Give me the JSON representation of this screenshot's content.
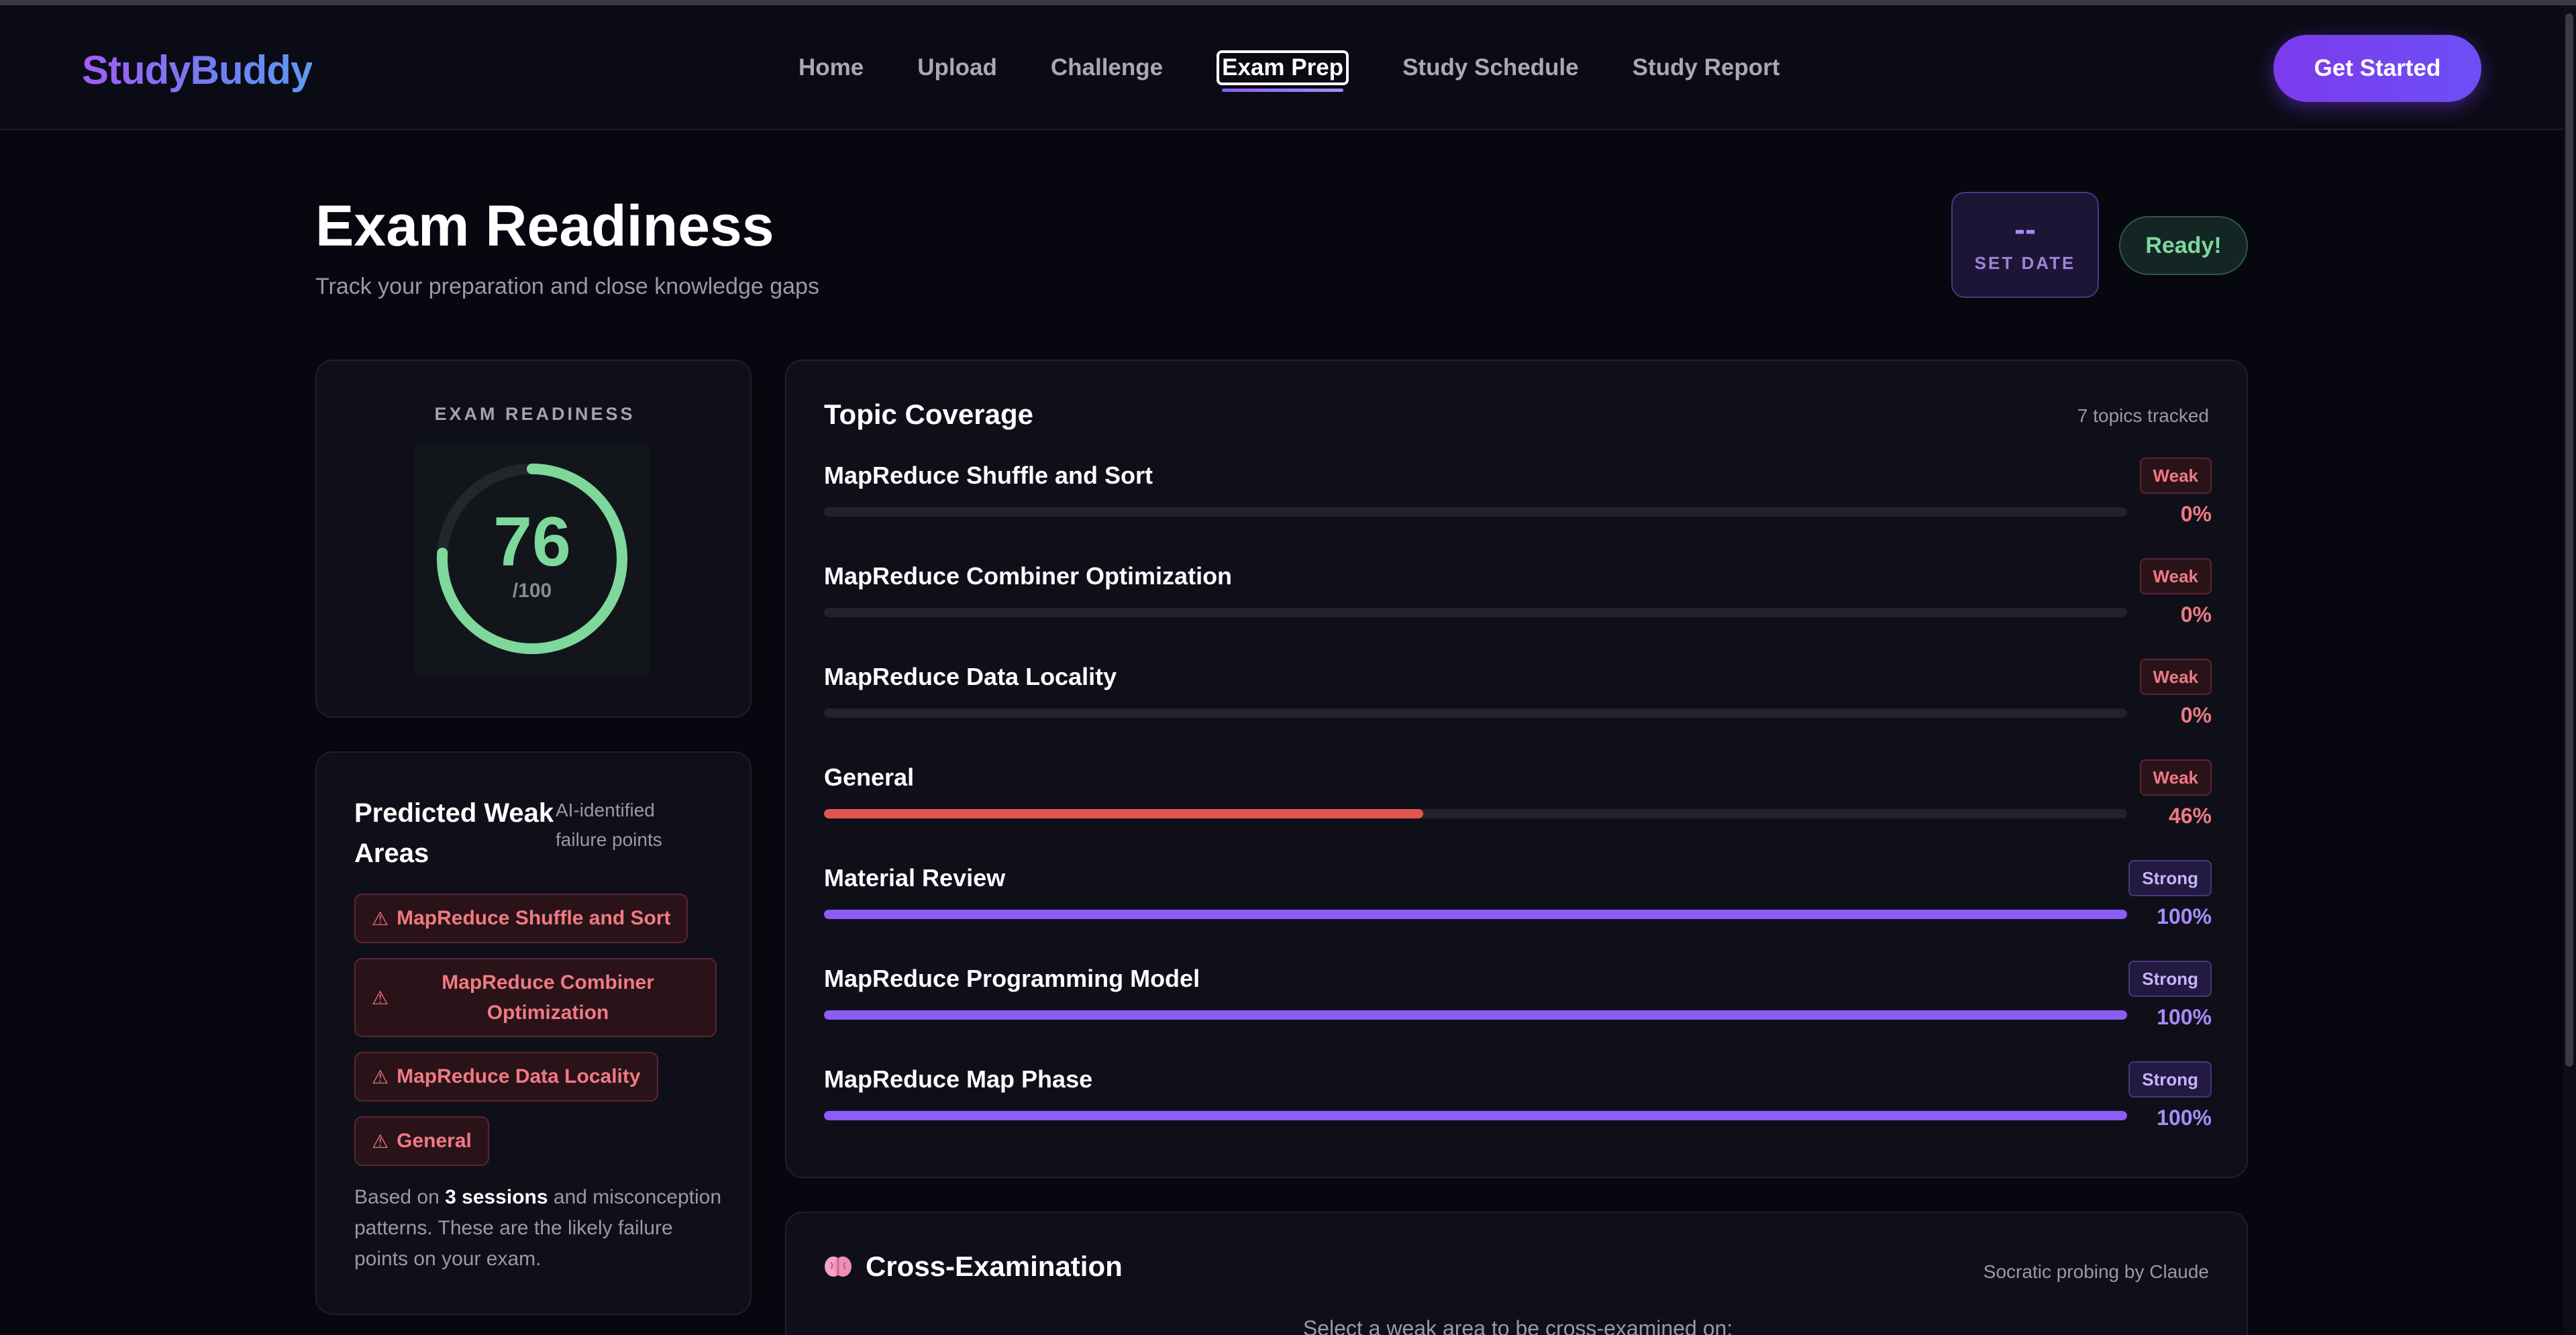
{
  "app": {
    "logo": "StudyBuddy"
  },
  "nav": {
    "links": [
      "Home",
      "Upload",
      "Challenge",
      "Exam Prep",
      "Study Schedule",
      "Study Report"
    ],
    "active": "Exam Prep",
    "cta_label": "Get Started"
  },
  "header": {
    "title": "Exam Readiness",
    "subtitle": "Track your preparation and close knowledge gaps",
    "date_value": "--",
    "date_label": "SET DATE",
    "status_pill": "Ready!"
  },
  "readiness": {
    "label": "EXAM READINESS",
    "score": "76",
    "max": "/100",
    "score_fraction": 0.76,
    "color": "#7ed79b"
  },
  "weak_areas": {
    "title": "Predicted Weak Areas",
    "subtitle": "AI-identified failure points",
    "tags": [
      "MapReduce Shuffle and Sort",
      "MapReduce Combiner Optimization",
      "MapReduce Data Locality",
      "General"
    ],
    "tag_icon": "warning-icon",
    "footer_prefix": "Based on ",
    "footer_bold": "3 sessions",
    "footer_suffix": " and misconception patterns. These are the likely failure points on your exam."
  },
  "topic_coverage": {
    "title": "Topic Coverage",
    "count_label": "7 topics tracked",
    "colors": {
      "weak": "#e2554f",
      "strong": "#8b5cf6",
      "weak_text": "#f07a82",
      "strong_text": "#a78bfa"
    },
    "topics": [
      {
        "name": "MapReduce Shuffle and Sort",
        "status": "Weak",
        "percent": 0,
        "percent_label": "0%"
      },
      {
        "name": "MapReduce Combiner Optimization",
        "status": "Weak",
        "percent": 0,
        "percent_label": "0%"
      },
      {
        "name": "MapReduce Data Locality",
        "status": "Weak",
        "percent": 0,
        "percent_label": "0%"
      },
      {
        "name": "General",
        "status": "Weak",
        "percent": 46,
        "percent_label": "46%"
      },
      {
        "name": "Material Review",
        "status": "Strong",
        "percent": 100,
        "percent_label": "100%"
      },
      {
        "name": "MapReduce Programming Model",
        "status": "Strong",
        "percent": 100,
        "percent_label": "100%"
      },
      {
        "name": "MapReduce Map Phase",
        "status": "Strong",
        "percent": 100,
        "percent_label": "100%"
      }
    ]
  },
  "cross_exam": {
    "icon": "brain-icon",
    "title": "Cross-Examination",
    "subtitle": "Socratic probing by Claude",
    "prompt": "Select a weak area to be cross-examined on:"
  }
}
